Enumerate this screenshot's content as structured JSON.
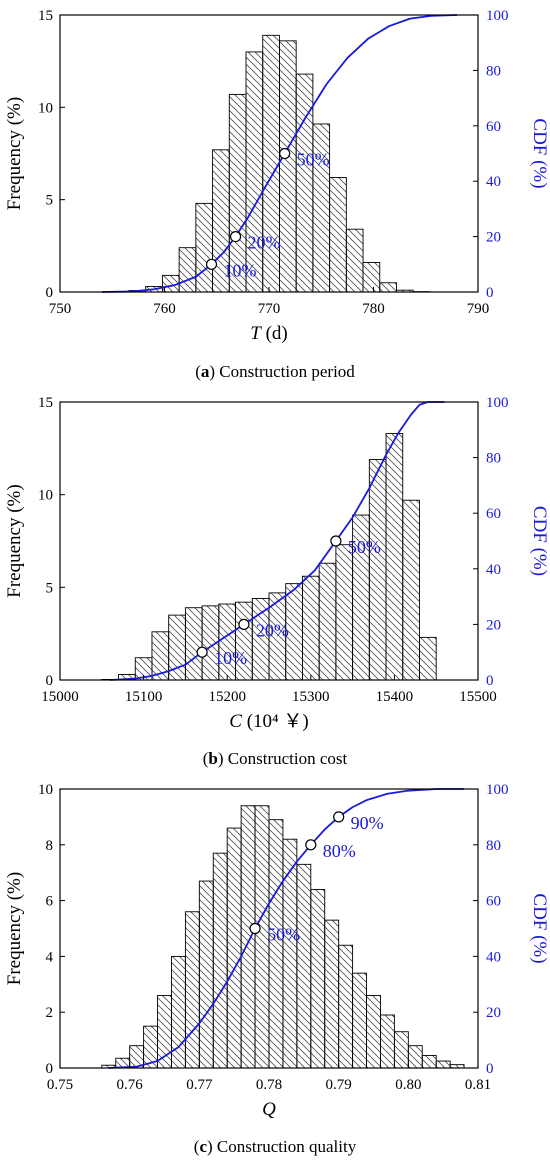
{
  "colors": {
    "cdf": "#1a1adb",
    "bar_stroke": "#000000",
    "hatch": "#555555",
    "text": "#000000"
  },
  "chart_data": [
    {
      "type": "bar",
      "caption_letter": "a",
      "caption_text": " Construction period",
      "x_var": "T",
      "x_unit": " (d)",
      "ylabel": "Frequency (%)",
      "y2label": "CDF (%)",
      "xlim": [
        750,
        790
      ],
      "ylim": [
        0,
        15
      ],
      "y2lim": [
        0,
        100
      ],
      "xticks": [
        "750",
        "760",
        "770",
        "780",
        "790"
      ],
      "yticks": [
        "0",
        "5",
        "10",
        "15"
      ],
      "y2ticks": [
        "0",
        "20",
        "40",
        "60",
        "80",
        "100"
      ],
      "bin_start": 755,
      "bin_width": 1.6,
      "values": [
        0.02,
        0.08,
        0.3,
        0.9,
        2.4,
        4.8,
        7.7,
        10.7,
        13.0,
        13.9,
        13.6,
        11.8,
        9.1,
        6.2,
        3.4,
        1.6,
        0.5,
        0.1,
        0.02
      ],
      "cdf": [
        [
          754,
          0
        ],
        [
          757,
          0.2
        ],
        [
          759,
          1
        ],
        [
          761,
          2.5
        ],
        [
          763,
          5.5
        ],
        [
          764.5,
          10
        ],
        [
          765.7,
          14.5
        ],
        [
          766.8,
          20
        ],
        [
          768,
          27
        ],
        [
          769.5,
          37
        ],
        [
          771.5,
          50
        ],
        [
          773.5,
          63
        ],
        [
          775.5,
          75
        ],
        [
          777.5,
          84.5
        ],
        [
          779.5,
          91.5
        ],
        [
          781.5,
          96
        ],
        [
          783.5,
          98.7
        ],
        [
          785.5,
          99.7
        ],
        [
          788,
          100
        ]
      ],
      "markers": [
        {
          "x": 764.5,
          "y": 10,
          "label": "10%"
        },
        {
          "x": 766.8,
          "y": 20,
          "label": "20%"
        },
        {
          "x": 771.5,
          "y": 50,
          "label": "50%"
        }
      ]
    },
    {
      "type": "bar",
      "caption_letter": "b",
      "caption_text": " Construction cost",
      "x_var": "C",
      "x_unit": " (10⁴ ￥)",
      "ylabel": "Frequency (%)",
      "y2label": "CDF (%)",
      "xlim": [
        15000,
        15500
      ],
      "ylim": [
        0,
        15
      ],
      "y2lim": [
        0,
        100
      ],
      "xticks": [
        "15000",
        "15100",
        "15200",
        "15300",
        "15400",
        "15500"
      ],
      "yticks": [
        "0",
        "5",
        "10",
        "15"
      ],
      "y2ticks": [
        "0",
        "20",
        "40",
        "60",
        "80",
        "100"
      ],
      "bin_start": 15050,
      "bin_width": 20,
      "values": [
        0.03,
        0.3,
        1.2,
        2.6,
        3.5,
        3.9,
        4.0,
        4.1,
        4.2,
        4.4,
        4.7,
        5.2,
        5.6,
        6.3,
        7.3,
        8.9,
        11.9,
        13.3,
        9.7,
        2.3
      ],
      "cdf": [
        [
          15060,
          0
        ],
        [
          15090,
          0.5
        ],
        [
          15110,
          1.5
        ],
        [
          15130,
          3.2
        ],
        [
          15150,
          5.5
        ],
        [
          15170,
          10
        ],
        [
          15195,
          15
        ],
        [
          15220,
          20
        ],
        [
          15250,
          26
        ],
        [
          15280,
          32.5
        ],
        [
          15305,
          39.5
        ],
        [
          15330,
          50
        ],
        [
          15350,
          58.5
        ],
        [
          15370,
          69
        ],
        [
          15390,
          81
        ],
        [
          15405,
          89
        ],
        [
          15420,
          95.5
        ],
        [
          15430,
          99
        ],
        [
          15440,
          100
        ],
        [
          15460,
          100
        ]
      ],
      "markers": [
        {
          "x": 15170,
          "y": 10,
          "label": "10%"
        },
        {
          "x": 15220,
          "y": 20,
          "label": "20%"
        },
        {
          "x": 15330,
          "y": 50,
          "label": "50%"
        }
      ]
    },
    {
      "type": "bar",
      "caption_letter": "c",
      "caption_text": " Construction quality",
      "x_var": "Q",
      "x_unit": "",
      "ylabel": "Frequency (%)",
      "y2label": "CDF (%)",
      "xlim": [
        0.75,
        0.81
      ],
      "ylim": [
        0,
        10
      ],
      "y2lim": [
        0,
        100
      ],
      "xticks": [
        "0.75",
        "0.76",
        "0.77",
        "0.78",
        "0.79",
        "0.80",
        "0.81"
      ],
      "yticks": [
        "0",
        "2",
        "4",
        "6",
        "8",
        "10"
      ],
      "y2ticks": [
        "0",
        "20",
        "40",
        "60",
        "80",
        "100"
      ],
      "bin_start": 0.756,
      "bin_width": 0.002,
      "values": [
        0.1,
        0.35,
        0.8,
        1.5,
        2.6,
        4.0,
        5.6,
        6.7,
        7.7,
        8.6,
        9.4,
        9.4,
        8.9,
        8.2,
        7.3,
        6.4,
        5.3,
        4.4,
        3.4,
        2.6,
        1.9,
        1.3,
        0.8,
        0.45,
        0.25,
        0.12
      ],
      "cdf": [
        [
          0.757,
          0
        ],
        [
          0.761,
          0.5
        ],
        [
          0.764,
          2.5
        ],
        [
          0.767,
          7.5
        ],
        [
          0.77,
          16
        ],
        [
          0.772,
          23
        ],
        [
          0.774,
          31
        ],
        [
          0.776,
          40
        ],
        [
          0.778,
          50
        ],
        [
          0.78,
          59
        ],
        [
          0.782,
          67
        ],
        [
          0.784,
          74
        ],
        [
          0.786,
          80
        ],
        [
          0.788,
          85.5
        ],
        [
          0.79,
          90
        ],
        [
          0.792,
          93.5
        ],
        [
          0.794,
          96
        ],
        [
          0.797,
          98.3
        ],
        [
          0.8,
          99.4
        ],
        [
          0.804,
          100
        ],
        [
          0.808,
          100
        ]
      ],
      "markers": [
        {
          "x": 0.778,
          "y": 50,
          "label": "50%"
        },
        {
          "x": 0.786,
          "y": 80,
          "label": "80%"
        },
        {
          "x": 0.79,
          "y": 90,
          "label": "90%"
        }
      ]
    }
  ]
}
